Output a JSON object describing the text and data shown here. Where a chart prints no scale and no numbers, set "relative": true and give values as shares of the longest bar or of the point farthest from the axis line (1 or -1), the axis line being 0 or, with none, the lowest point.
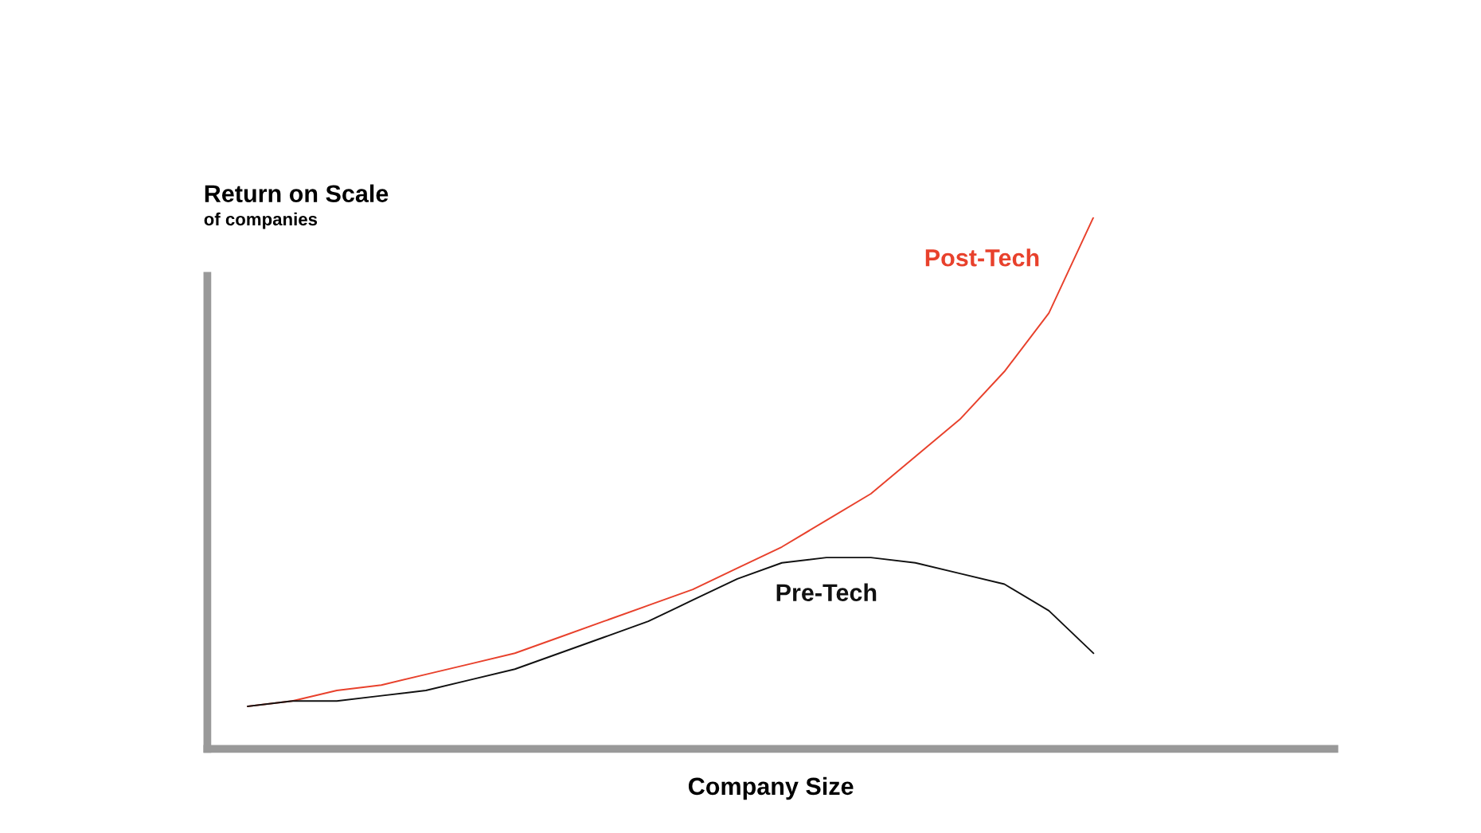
{
  "chart_data": {
    "type": "line",
    "relative": true,
    "xlabel": "Company Size",
    "ylabel": "Return on Scale",
    "annotations": [
      "of companies"
    ],
    "categories": [
      null,
      null,
      null,
      null,
      null,
      null,
      null,
      null,
      null,
      null,
      null,
      null,
      null,
      null,
      null,
      null,
      null,
      null,
      null,
      null
    ],
    "series": [
      {
        "name": "Post-Tech",
        "color": "#e8412c",
        "values": [
          0.08,
          0.09,
          0.11,
          0.12,
          0.14,
          0.16,
          0.18,
          0.21,
          0.24,
          0.27,
          0.3,
          0.34,
          0.38,
          0.43,
          0.48,
          0.55,
          0.62,
          0.71,
          0.82,
          1
        ]
      },
      {
        "name": "Pre-Tech",
        "color": "#111111",
        "values": [
          0.08,
          0.09,
          0.09,
          0.1,
          0.11,
          0.13,
          0.15,
          0.18,
          0.21,
          0.24,
          0.28,
          0.32,
          0.35,
          0.36,
          0.36,
          0.35,
          0.33,
          0.31,
          0.26,
          0.18
        ]
      }
    ],
    "grid": false,
    "legend": false,
    "marker": "none",
    "line_style": "solid"
  }
}
